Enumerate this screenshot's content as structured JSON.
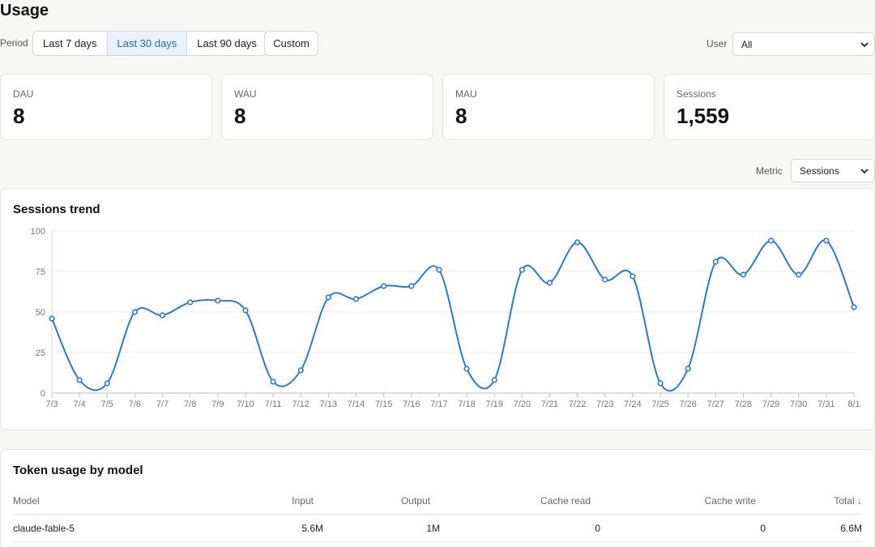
{
  "page": {
    "title": "Usage"
  },
  "period": {
    "label": "Period",
    "options": [
      "Last 7 days",
      "Last 30 days",
      "Last 90 days"
    ],
    "selected": "Last 30 days",
    "custom_label": "Custom"
  },
  "user_filter": {
    "label": "User",
    "value": "All"
  },
  "stats": [
    {
      "label": "DAU",
      "value": "8"
    },
    {
      "label": "WAU",
      "value": "8"
    },
    {
      "label": "MAU",
      "value": "8"
    },
    {
      "label": "Sessions",
      "value": "1,559"
    }
  ],
  "metric_filter": {
    "label": "Metric",
    "value": "Sessions"
  },
  "chart_data": {
    "type": "line",
    "title": "Sessions trend",
    "x": [
      "7/3",
      "7/4",
      "7/5",
      "7/6",
      "7/7",
      "7/8",
      "7/9",
      "7/10",
      "7/11",
      "7/12",
      "7/13",
      "7/14",
      "7/15",
      "7/16",
      "7/17",
      "7/18",
      "7/19",
      "7/20",
      "7/21",
      "7/22",
      "7/23",
      "7/24",
      "7/25",
      "7/26",
      "7/27",
      "7/28",
      "7/29",
      "7/30",
      "7/31",
      "8/1"
    ],
    "series": [
      {
        "values": [
          46,
          8,
          6,
          50,
          48,
          56,
          57,
          51,
          7,
          14,
          59,
          58,
          66,
          66,
          76,
          15,
          8,
          76,
          68,
          93,
          70,
          72,
          6,
          15,
          81,
          73,
          94,
          73,
          94,
          53
        ]
      }
    ],
    "yticks": [
      0,
      25,
      50,
      75,
      100
    ],
    "ylim": [
      0,
      100
    ],
    "grid": true,
    "color": "#2f78d0"
  },
  "token_table": {
    "title": "Token usage by model",
    "columns": [
      "Model",
      "Input",
      "Output",
      "Cache read",
      "Cache write",
      "Total ↓"
    ],
    "rows": [
      [
        "claude-fable-5",
        "5.6M",
        "1M",
        "0",
        "0",
        "6.6M"
      ]
    ]
  }
}
